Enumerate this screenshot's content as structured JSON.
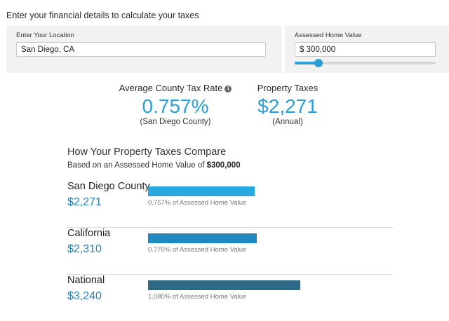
{
  "intro": "Enter your financial details to calculate your taxes",
  "location": {
    "label": "Enter Your Location",
    "value": "San Diego, CA"
  },
  "home_value": {
    "label": "Assessed Home Value",
    "value": "$ 300,000",
    "slider_fraction": 0.17
  },
  "rate": {
    "heading": "Average County Tax Rate",
    "info_icon": "info-icon",
    "value": "0.757%",
    "note": "(San Diego County)"
  },
  "tax": {
    "heading": "Property Taxes",
    "value": "$2,271",
    "note": "(Annual)"
  },
  "compare": {
    "title": "How Your Property Taxes Compare",
    "subtitle_prefix": "Based on an Assessed Home Value of",
    "subtitle_value": "$300,000",
    "rows": [
      {
        "name": "San Diego County",
        "amount": "$2,271",
        "percent_text": "0.757% of Assessed Home Value",
        "rate": 0.757,
        "color": "#29a8e0"
      },
      {
        "name": "California",
        "amount": "$2,310",
        "percent_text": "0.770% of Assessed Home Value",
        "rate": 0.77,
        "color": "#2188bd"
      },
      {
        "name": "National",
        "amount": "$3,240",
        "percent_text": "1.080% of Assessed Home Value",
        "rate": 1.08,
        "color": "#2e6a86"
      }
    ]
  },
  "accent_color": "#2a9fd6"
}
